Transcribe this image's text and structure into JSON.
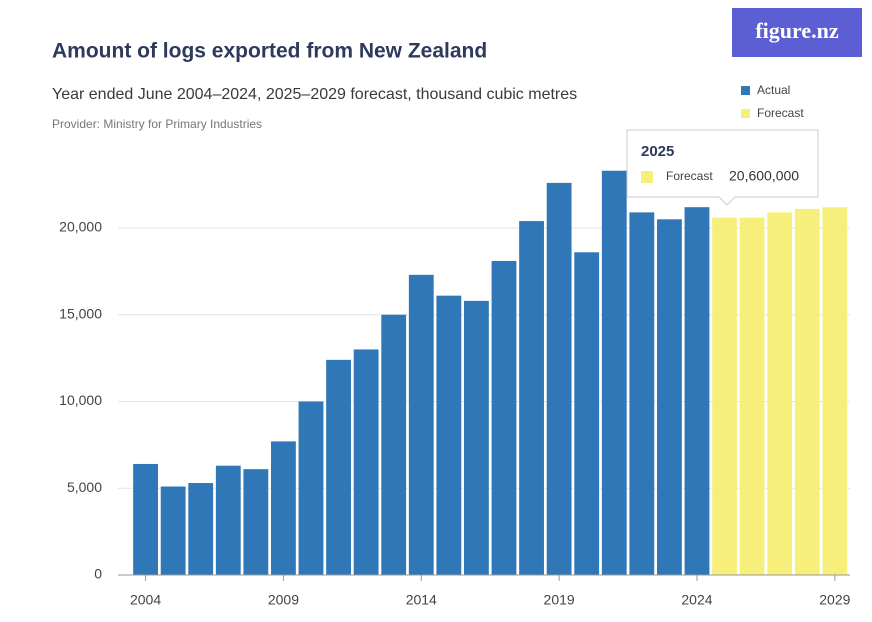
{
  "chart_data": {
    "type": "bar",
    "title": "Amount of logs exported from New Zealand",
    "subtitle": "Year ended June 2004–2024, 2025–2029 forecast, thousand cubic metres",
    "provider": "Provider: Ministry for Primary Industries",
    "logo": "figure.nz",
    "x": [
      2004,
      2005,
      2006,
      2007,
      2008,
      2009,
      2010,
      2011,
      2012,
      2013,
      2014,
      2015,
      2016,
      2017,
      2018,
      2019,
      2020,
      2021,
      2022,
      2023,
      2024,
      2025,
      2026,
      2027,
      2028,
      2029
    ],
    "series": [
      {
        "name": "Actual",
        "color": "#2f77b6",
        "values": [
          6400,
          5100,
          5300,
          6300,
          6100,
          7700,
          10000,
          12400,
          13000,
          15000,
          17300,
          16100,
          15800,
          18100,
          20400,
          22600,
          18600,
          23300,
          20900,
          20500,
          21200,
          null,
          null,
          null,
          null,
          null
        ]
      },
      {
        "name": "Forecast",
        "color": "#f7ef7c",
        "values": [
          null,
          null,
          null,
          null,
          null,
          null,
          null,
          null,
          null,
          null,
          null,
          null,
          null,
          null,
          null,
          null,
          null,
          null,
          null,
          null,
          null,
          20600,
          20600,
          20900,
          21100,
          21200
        ]
      }
    ],
    "xlim": [
      2003,
      2029.55
    ],
    "xticks": [
      2004,
      2009,
      2014,
      2019,
      2024,
      2029
    ],
    "ylim": [
      0,
      26000
    ],
    "yticks": [
      0,
      {
        "value": 5000,
        "label": "5,000"
      },
      {
        "value": 10000,
        "label": "10,000"
      },
      {
        "value": 15000,
        "label": "15,000"
      },
      {
        "value": 20000,
        "label": "20,000"
      }
    ],
    "tooltip": {
      "title": "2025",
      "series": "Forecast",
      "value": "20,600,000"
    }
  }
}
